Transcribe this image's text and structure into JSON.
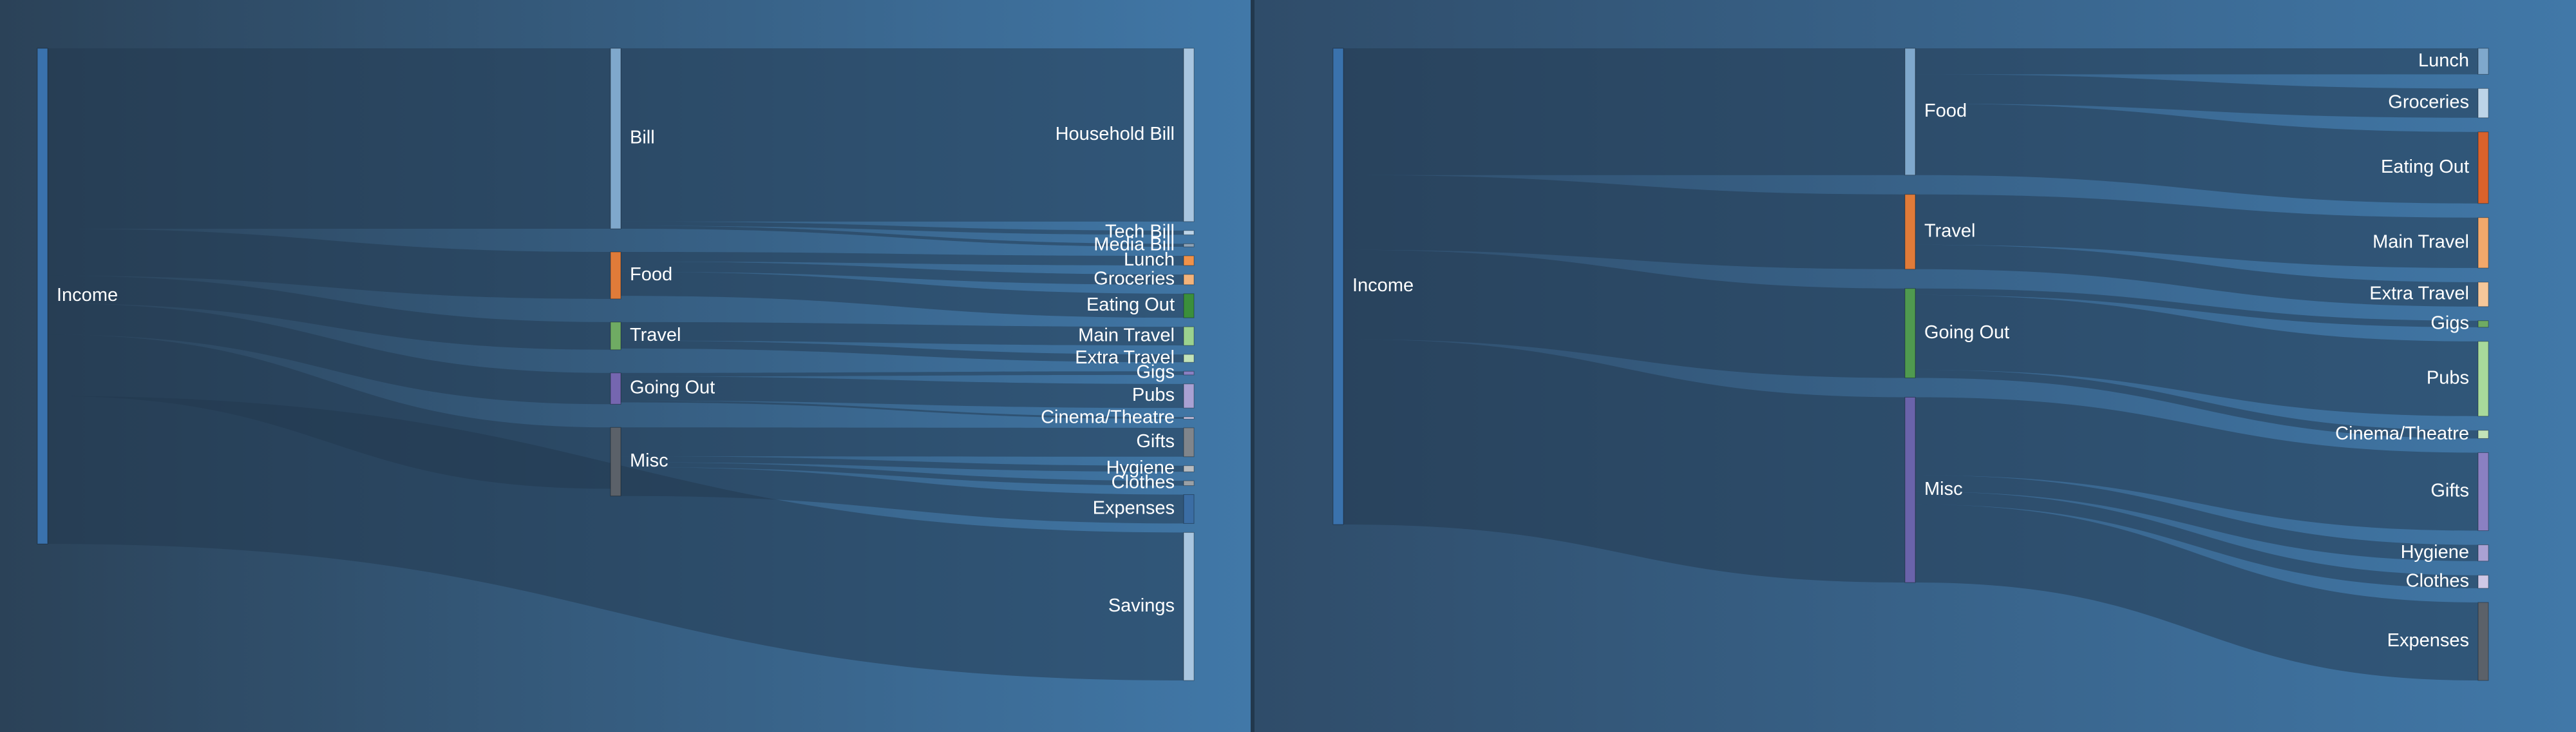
{
  "colors": {
    "bg_left_start": "#2b4258",
    "bg_left_end": "#4178a8",
    "bg_right_start": "#2f4c69",
    "bg_right_end": "#4178a8",
    "divider": "#22384d",
    "link": "#22384d",
    "link_opacity": 0.5
  },
  "chart_data": [
    {
      "type": "sankey",
      "title": "",
      "nodes": [
        {
          "name": "Income",
          "color": "#3a72ad"
        },
        {
          "name": "Bill",
          "color": "#7fa8cc"
        },
        {
          "name": "Food",
          "color": "#e07b39"
        },
        {
          "name": "Travel",
          "color": "#6fab63"
        },
        {
          "name": "Going Out",
          "color": "#7566b0"
        },
        {
          "name": "Misc",
          "color": "#5b6169"
        },
        {
          "name": "Household Bill",
          "color": "#a9c6e0"
        },
        {
          "name": "Tech Bill",
          "color": "#bcd4e8"
        },
        {
          "name": "Media Bill",
          "color": "#8fa3b6"
        },
        {
          "name": "Lunch",
          "color": "#f0924a"
        },
        {
          "name": "Groceries",
          "color": "#f2b37b"
        },
        {
          "name": "Eating Out",
          "color": "#3b8f3b"
        },
        {
          "name": "Main Travel",
          "color": "#9bd28f"
        },
        {
          "name": "Extra Travel",
          "color": "#c2e3b8"
        },
        {
          "name": "Gigs",
          "color": "#8a80c2"
        },
        {
          "name": "Pubs",
          "color": "#a9a1d3"
        },
        {
          "name": "Cinema/Theatre",
          "color": "#cfc8e6"
        },
        {
          "name": "Gifts",
          "color": "#80858b"
        },
        {
          "name": "Hygiene",
          "color": "#b8bcc0"
        },
        {
          "name": "Clothes",
          "color": "#9aa0a6"
        },
        {
          "name": "Expenses",
          "color": "#3b6da4"
        },
        {
          "name": "Savings",
          "color": "#a9c6e0"
        }
      ],
      "links": [
        {
          "source": "Income",
          "target": "Bill",
          "value": 300
        },
        {
          "source": "Income",
          "target": "Food",
          "value": 78
        },
        {
          "source": "Income",
          "target": "Travel",
          "value": 46
        },
        {
          "source": "Income",
          "target": "Going Out",
          "value": 52
        },
        {
          "source": "Income",
          "target": "Misc",
          "value": 102
        },
        {
          "source": "Income",
          "target": "Savings",
          "value": 246
        },
        {
          "source": "Bill",
          "target": "Household Bill",
          "value": 288
        },
        {
          "source": "Bill",
          "target": "Tech Bill",
          "value": 7
        },
        {
          "source": "Bill",
          "target": "Media Bill",
          "value": 5
        },
        {
          "source": "Food",
          "target": "Lunch",
          "value": 16
        },
        {
          "source": "Food",
          "target": "Groceries",
          "value": 17
        },
        {
          "source": "Food",
          "target": "Eating Out",
          "value": 40
        },
        {
          "source": "Travel",
          "target": "Main Travel",
          "value": 31
        },
        {
          "source": "Travel",
          "target": "Extra Travel",
          "value": 13
        },
        {
          "source": "Going Out",
          "target": "Gigs",
          "value": 6
        },
        {
          "source": "Going Out",
          "target": "Pubs",
          "value": 40
        },
        {
          "source": "Going Out",
          "target": "Cinema/Theatre",
          "value": 3
        },
        {
          "source": "Misc",
          "target": "Gifts",
          "value": 48
        },
        {
          "source": "Misc",
          "target": "Hygiene",
          "value": 10
        },
        {
          "source": "Misc",
          "target": "Clothes",
          "value": 8
        },
        {
          "source": "Misc",
          "target": "Expenses",
          "value": 48
        }
      ]
    },
    {
      "type": "sankey",
      "title": "",
      "nodes": [
        {
          "name": "Income",
          "color": "#3a72ad"
        },
        {
          "name": "Food",
          "color": "#7fa8cc"
        },
        {
          "name": "Travel",
          "color": "#e07b39"
        },
        {
          "name": "Going Out",
          "color": "#4f9a4f"
        },
        {
          "name": "Misc",
          "color": "#6a63aa"
        },
        {
          "name": "Lunch",
          "color": "#7fa8cc"
        },
        {
          "name": "Groceries",
          "color": "#bcd4e8"
        },
        {
          "name": "Eating Out",
          "color": "#d9622b"
        },
        {
          "name": "Main Travel",
          "color": "#f2a86b"
        },
        {
          "name": "Extra Travel",
          "color": "#f5c79a"
        },
        {
          "name": "Gigs",
          "color": "#6fab63"
        },
        {
          "name": "Pubs",
          "color": "#a8d99b"
        },
        {
          "name": "Cinema/Theatre",
          "color": "#c2e3b8"
        },
        {
          "name": "Gifts",
          "color": "#8a80c2"
        },
        {
          "name": "Hygiene",
          "color": "#a9a1d3"
        },
        {
          "name": "Clothes",
          "color": "#cfc8e6"
        },
        {
          "name": "Expenses",
          "color": "#5b6169"
        }
      ],
      "links": [
        {
          "source": "Income",
          "target": "Food",
          "value": 78
        },
        {
          "source": "Income",
          "target": "Travel",
          "value": 46
        },
        {
          "source": "Income",
          "target": "Going Out",
          "value": 55
        },
        {
          "source": "Income",
          "target": "Misc",
          "value": 114
        },
        {
          "source": "Food",
          "target": "Lunch",
          "value": 16
        },
        {
          "source": "Food",
          "target": "Groceries",
          "value": 18
        },
        {
          "source": "Food",
          "target": "Eating Out",
          "value": 44
        },
        {
          "source": "Travel",
          "target": "Main Travel",
          "value": 31
        },
        {
          "source": "Travel",
          "target": "Extra Travel",
          "value": 15
        },
        {
          "source": "Going Out",
          "target": "Gigs",
          "value": 4
        },
        {
          "source": "Going Out",
          "target": "Pubs",
          "value": 46
        },
        {
          "source": "Going Out",
          "target": "Cinema/Theatre",
          "value": 5
        },
        {
          "source": "Misc",
          "target": "Gifts",
          "value": 48
        },
        {
          "source": "Misc",
          "target": "Hygiene",
          "value": 10
        },
        {
          "source": "Misc",
          "target": "Clothes",
          "value": 8
        },
        {
          "source": "Misc",
          "target": "Expenses",
          "value": 48
        }
      ]
    }
  ]
}
